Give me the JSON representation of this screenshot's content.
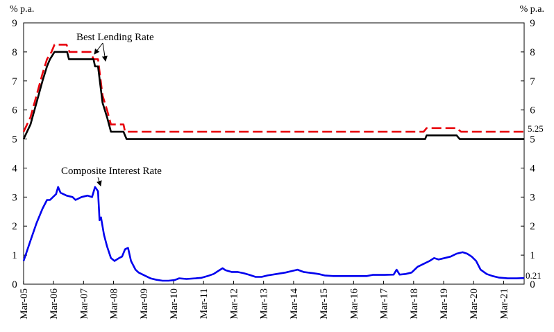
{
  "units": {
    "left": "% p.a.",
    "right": "% p.a."
  },
  "chart_data": {
    "type": "line",
    "x_tick_labels": [
      "Mar-05",
      "Mar-06",
      "Mar-07",
      "Mar-08",
      "Mar-09",
      "Mar-10",
      "Mar-11",
      "Mar-12",
      "Mar-13",
      "Mar-14",
      "Mar-15",
      "Mar-16",
      "Mar-17",
      "Mar-18",
      "Mar-19",
      "Mar-20",
      "Mar-21"
    ],
    "ylim": [
      0,
      9
    ],
    "y_ticks": [
      0,
      1,
      2,
      3,
      4,
      5,
      6,
      7,
      8,
      9
    ],
    "grid": false,
    "annotations": [
      {
        "text": "Best Lending Rate"
      },
      {
        "text": "Composite Interest Rate"
      }
    ],
    "end_labels": {
      "red": "5.25",
      "blue": "0.21"
    },
    "series": [
      {
        "color": "#e8000b",
        "dash": "dashed",
        "points": [
          [
            2005.17,
            5.25
          ],
          [
            2005.4,
            5.75
          ],
          [
            2005.6,
            6.5
          ],
          [
            2005.8,
            7.25
          ],
          [
            2005.95,
            7.75
          ],
          [
            2006.1,
            8.0
          ],
          [
            2006.2,
            8.25
          ],
          [
            2006.6,
            8.25
          ],
          [
            2006.7,
            8.0
          ],
          [
            2007.0,
            8.0
          ],
          [
            2007.4,
            8.0
          ],
          [
            2007.5,
            7.75
          ],
          [
            2007.65,
            7.75
          ],
          [
            2007.8,
            6.5
          ],
          [
            2007.95,
            6.0
          ],
          [
            2008.08,
            5.5
          ],
          [
            2008.5,
            5.5
          ],
          [
            2008.55,
            5.25
          ],
          [
            2018.5,
            5.25
          ],
          [
            2018.6,
            5.375
          ],
          [
            2019.6,
            5.375
          ],
          [
            2019.75,
            5.25
          ],
          [
            2021.85,
            5.25
          ]
        ]
      },
      {
        "color": "#000000",
        "dash": "solid",
        "points": [
          [
            2005.17,
            5.0
          ],
          [
            2005.4,
            5.5
          ],
          [
            2005.6,
            6.25
          ],
          [
            2005.8,
            7.0
          ],
          [
            2005.95,
            7.5
          ],
          [
            2006.05,
            7.75
          ],
          [
            2006.2,
            8.0
          ],
          [
            2006.62,
            8.0
          ],
          [
            2006.68,
            7.75
          ],
          [
            2007.5,
            7.75
          ],
          [
            2007.55,
            7.5
          ],
          [
            2007.65,
            7.5
          ],
          [
            2007.8,
            6.25
          ],
          [
            2007.95,
            5.75
          ],
          [
            2008.08,
            5.25
          ],
          [
            2008.5,
            5.25
          ],
          [
            2008.6,
            5.0
          ],
          [
            2018.55,
            5.0
          ],
          [
            2018.6,
            5.125
          ],
          [
            2019.6,
            5.125
          ],
          [
            2019.7,
            5.0
          ],
          [
            2021.85,
            5.0
          ]
        ]
      },
      {
        "color": "#0000ee",
        "dash": "solid",
        "points": [
          [
            2005.17,
            0.8
          ],
          [
            2005.4,
            1.5
          ],
          [
            2005.6,
            2.1
          ],
          [
            2005.8,
            2.6
          ],
          [
            2005.95,
            2.9
          ],
          [
            2006.05,
            2.9
          ],
          [
            2006.25,
            3.1
          ],
          [
            2006.32,
            3.35
          ],
          [
            2006.4,
            3.15
          ],
          [
            2006.6,
            3.05
          ],
          [
            2006.8,
            3.0
          ],
          [
            2006.9,
            2.9
          ],
          [
            2007.1,
            3.0
          ],
          [
            2007.3,
            3.05
          ],
          [
            2007.45,
            3.0
          ],
          [
            2007.55,
            3.35
          ],
          [
            2007.65,
            3.2
          ],
          [
            2007.7,
            2.2
          ],
          [
            2007.75,
            2.3
          ],
          [
            2007.85,
            1.7
          ],
          [
            2007.95,
            1.3
          ],
          [
            2008.08,
            0.9
          ],
          [
            2008.2,
            0.8
          ],
          [
            2008.35,
            0.9
          ],
          [
            2008.45,
            0.95
          ],
          [
            2008.55,
            1.2
          ],
          [
            2008.65,
            1.25
          ],
          [
            2008.75,
            0.8
          ],
          [
            2008.9,
            0.5
          ],
          [
            2009.0,
            0.4
          ],
          [
            2009.2,
            0.3
          ],
          [
            2009.4,
            0.2
          ],
          [
            2009.6,
            0.15
          ],
          [
            2009.8,
            0.12
          ],
          [
            2010.0,
            0.12
          ],
          [
            2010.2,
            0.14
          ],
          [
            2010.35,
            0.2
          ],
          [
            2010.6,
            0.18
          ],
          [
            2010.9,
            0.2
          ],
          [
            2011.1,
            0.22
          ],
          [
            2011.3,
            0.28
          ],
          [
            2011.5,
            0.35
          ],
          [
            2011.65,
            0.45
          ],
          [
            2011.8,
            0.55
          ],
          [
            2011.9,
            0.48
          ],
          [
            2012.1,
            0.42
          ],
          [
            2012.3,
            0.42
          ],
          [
            2012.5,
            0.38
          ],
          [
            2012.7,
            0.32
          ],
          [
            2012.9,
            0.25
          ],
          [
            2013.1,
            0.25
          ],
          [
            2013.3,
            0.3
          ],
          [
            2013.6,
            0.35
          ],
          [
            2013.9,
            0.4
          ],
          [
            2014.1,
            0.45
          ],
          [
            2014.3,
            0.5
          ],
          [
            2014.5,
            0.42
          ],
          [
            2014.8,
            0.38
          ],
          [
            2015.0,
            0.35
          ],
          [
            2015.2,
            0.3
          ],
          [
            2015.5,
            0.28
          ],
          [
            2015.8,
            0.28
          ],
          [
            2016.2,
            0.28
          ],
          [
            2016.6,
            0.28
          ],
          [
            2016.8,
            0.32
          ],
          [
            2017.2,
            0.32
          ],
          [
            2017.5,
            0.33
          ],
          [
            2017.6,
            0.5
          ],
          [
            2017.7,
            0.33
          ],
          [
            2017.9,
            0.35
          ],
          [
            2018.1,
            0.4
          ],
          [
            2018.3,
            0.6
          ],
          [
            2018.5,
            0.7
          ],
          [
            2018.7,
            0.8
          ],
          [
            2018.85,
            0.9
          ],
          [
            2019.0,
            0.85
          ],
          [
            2019.2,
            0.9
          ],
          [
            2019.4,
            0.95
          ],
          [
            2019.6,
            1.05
          ],
          [
            2019.8,
            1.1
          ],
          [
            2019.95,
            1.05
          ],
          [
            2020.1,
            0.95
          ],
          [
            2020.25,
            0.8
          ],
          [
            2020.4,
            0.5
          ],
          [
            2020.6,
            0.35
          ],
          [
            2020.8,
            0.28
          ],
          [
            2021.0,
            0.23
          ],
          [
            2021.3,
            0.2
          ],
          [
            2021.6,
            0.2
          ],
          [
            2021.85,
            0.21
          ]
        ]
      }
    ]
  }
}
